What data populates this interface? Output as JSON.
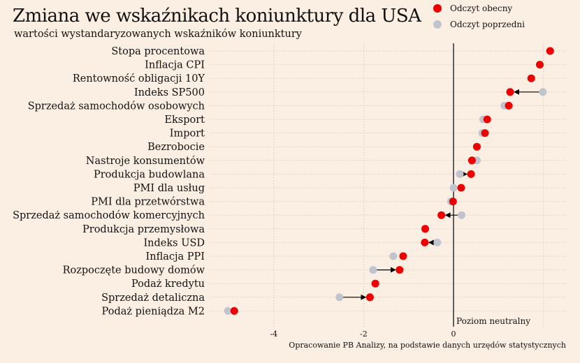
{
  "chart_data": {
    "type": "scatter",
    "title": "Zmiana we wskaźnikach koniunktury dla USA",
    "subtitle": "wartości wystandaryzowanych wskaźników koniunktury",
    "xlim": [
      -5.2,
      2.5
    ],
    "xticks": [
      -4,
      -2,
      0
    ],
    "xtick_labels": [
      "-4",
      "-2",
      "0"
    ],
    "neutral_line_x": 0,
    "neutral_label": "Poziom neutralny",
    "source": "Opracowanie PB Analizy, na podstawie danych urzędów statystycznych",
    "legend_position": "top-right",
    "series": [
      {
        "name": "Odczyt obecny",
        "color": "#ee0000"
      },
      {
        "name": "Odczyt poprzedni",
        "color": "#c0c4cf"
      }
    ],
    "arrow_color": "#000000",
    "categories": [
      "Stopa procentowa",
      "Inflacja CPI",
      "Rentowność obligacji 10Y",
      "Indeks SP500",
      "Sprzedaż samochodów osobowych",
      "Eksport",
      "Import",
      "Bezrobocie",
      "Nastroje konsumentów",
      "Produkcja budowlana",
      "PMI dla usług",
      "PMI dla przetwórstwa",
      "Sprzedaż samochodów komercyjnych",
      "Produkcja przemysłowa",
      "Indeks USD",
      "Inflacja PPI",
      "Rozpoczęte budowy domów",
      "Podaż kredytu",
      "Sprzedaż detaliczna",
      "Podaż pieniądza M2"
    ],
    "current": [
      2.15,
      1.92,
      1.73,
      1.26,
      1.23,
      0.75,
      0.7,
      0.52,
      0.41,
      0.39,
      0.17,
      -0.01,
      -0.27,
      -0.63,
      -0.64,
      -1.12,
      -1.2,
      -1.74,
      -1.86,
      -4.88
    ],
    "previous": [
      2.15,
      1.92,
      1.73,
      1.99,
      1.13,
      0.66,
      0.64,
      0.52,
      0.52,
      0.14,
      0.0,
      -0.06,
      0.18,
      -0.63,
      -0.36,
      -1.34,
      -1.79,
      -1.74,
      -2.54,
      -5.02
    ],
    "arrows": [
      false,
      false,
      false,
      true,
      false,
      false,
      false,
      false,
      false,
      true,
      false,
      false,
      true,
      false,
      true,
      false,
      true,
      false,
      true,
      false
    ]
  }
}
